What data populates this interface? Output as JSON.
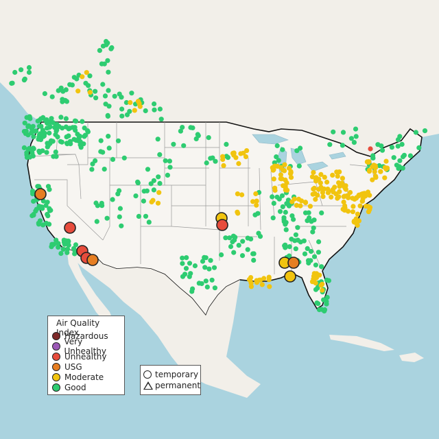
{
  "legend": {
    "title": "Air Quality Index",
    "categories": [
      {
        "label": "Hazardous",
        "color": "#7e2a2a"
      },
      {
        "label": "Very Unhealthy",
        "color": "#9b59b6"
      },
      {
        "label": "Unhealthy",
        "color": "#e74c3c"
      },
      {
        "label": "USG",
        "color": "#e67e22"
      },
      {
        "label": "Moderate",
        "color": "#f1c40f"
      },
      {
        "label": "Good",
        "color": "#2ecc71"
      }
    ]
  },
  "shape_legend": {
    "temporary": "temporary",
    "permanent": "permanent"
  },
  "colors": {
    "water": "#aad3df",
    "land": "#f2efe9",
    "us_land": "#f7f5f1",
    "border": "#111111",
    "state_lines": "#9a9a9a"
  }
}
